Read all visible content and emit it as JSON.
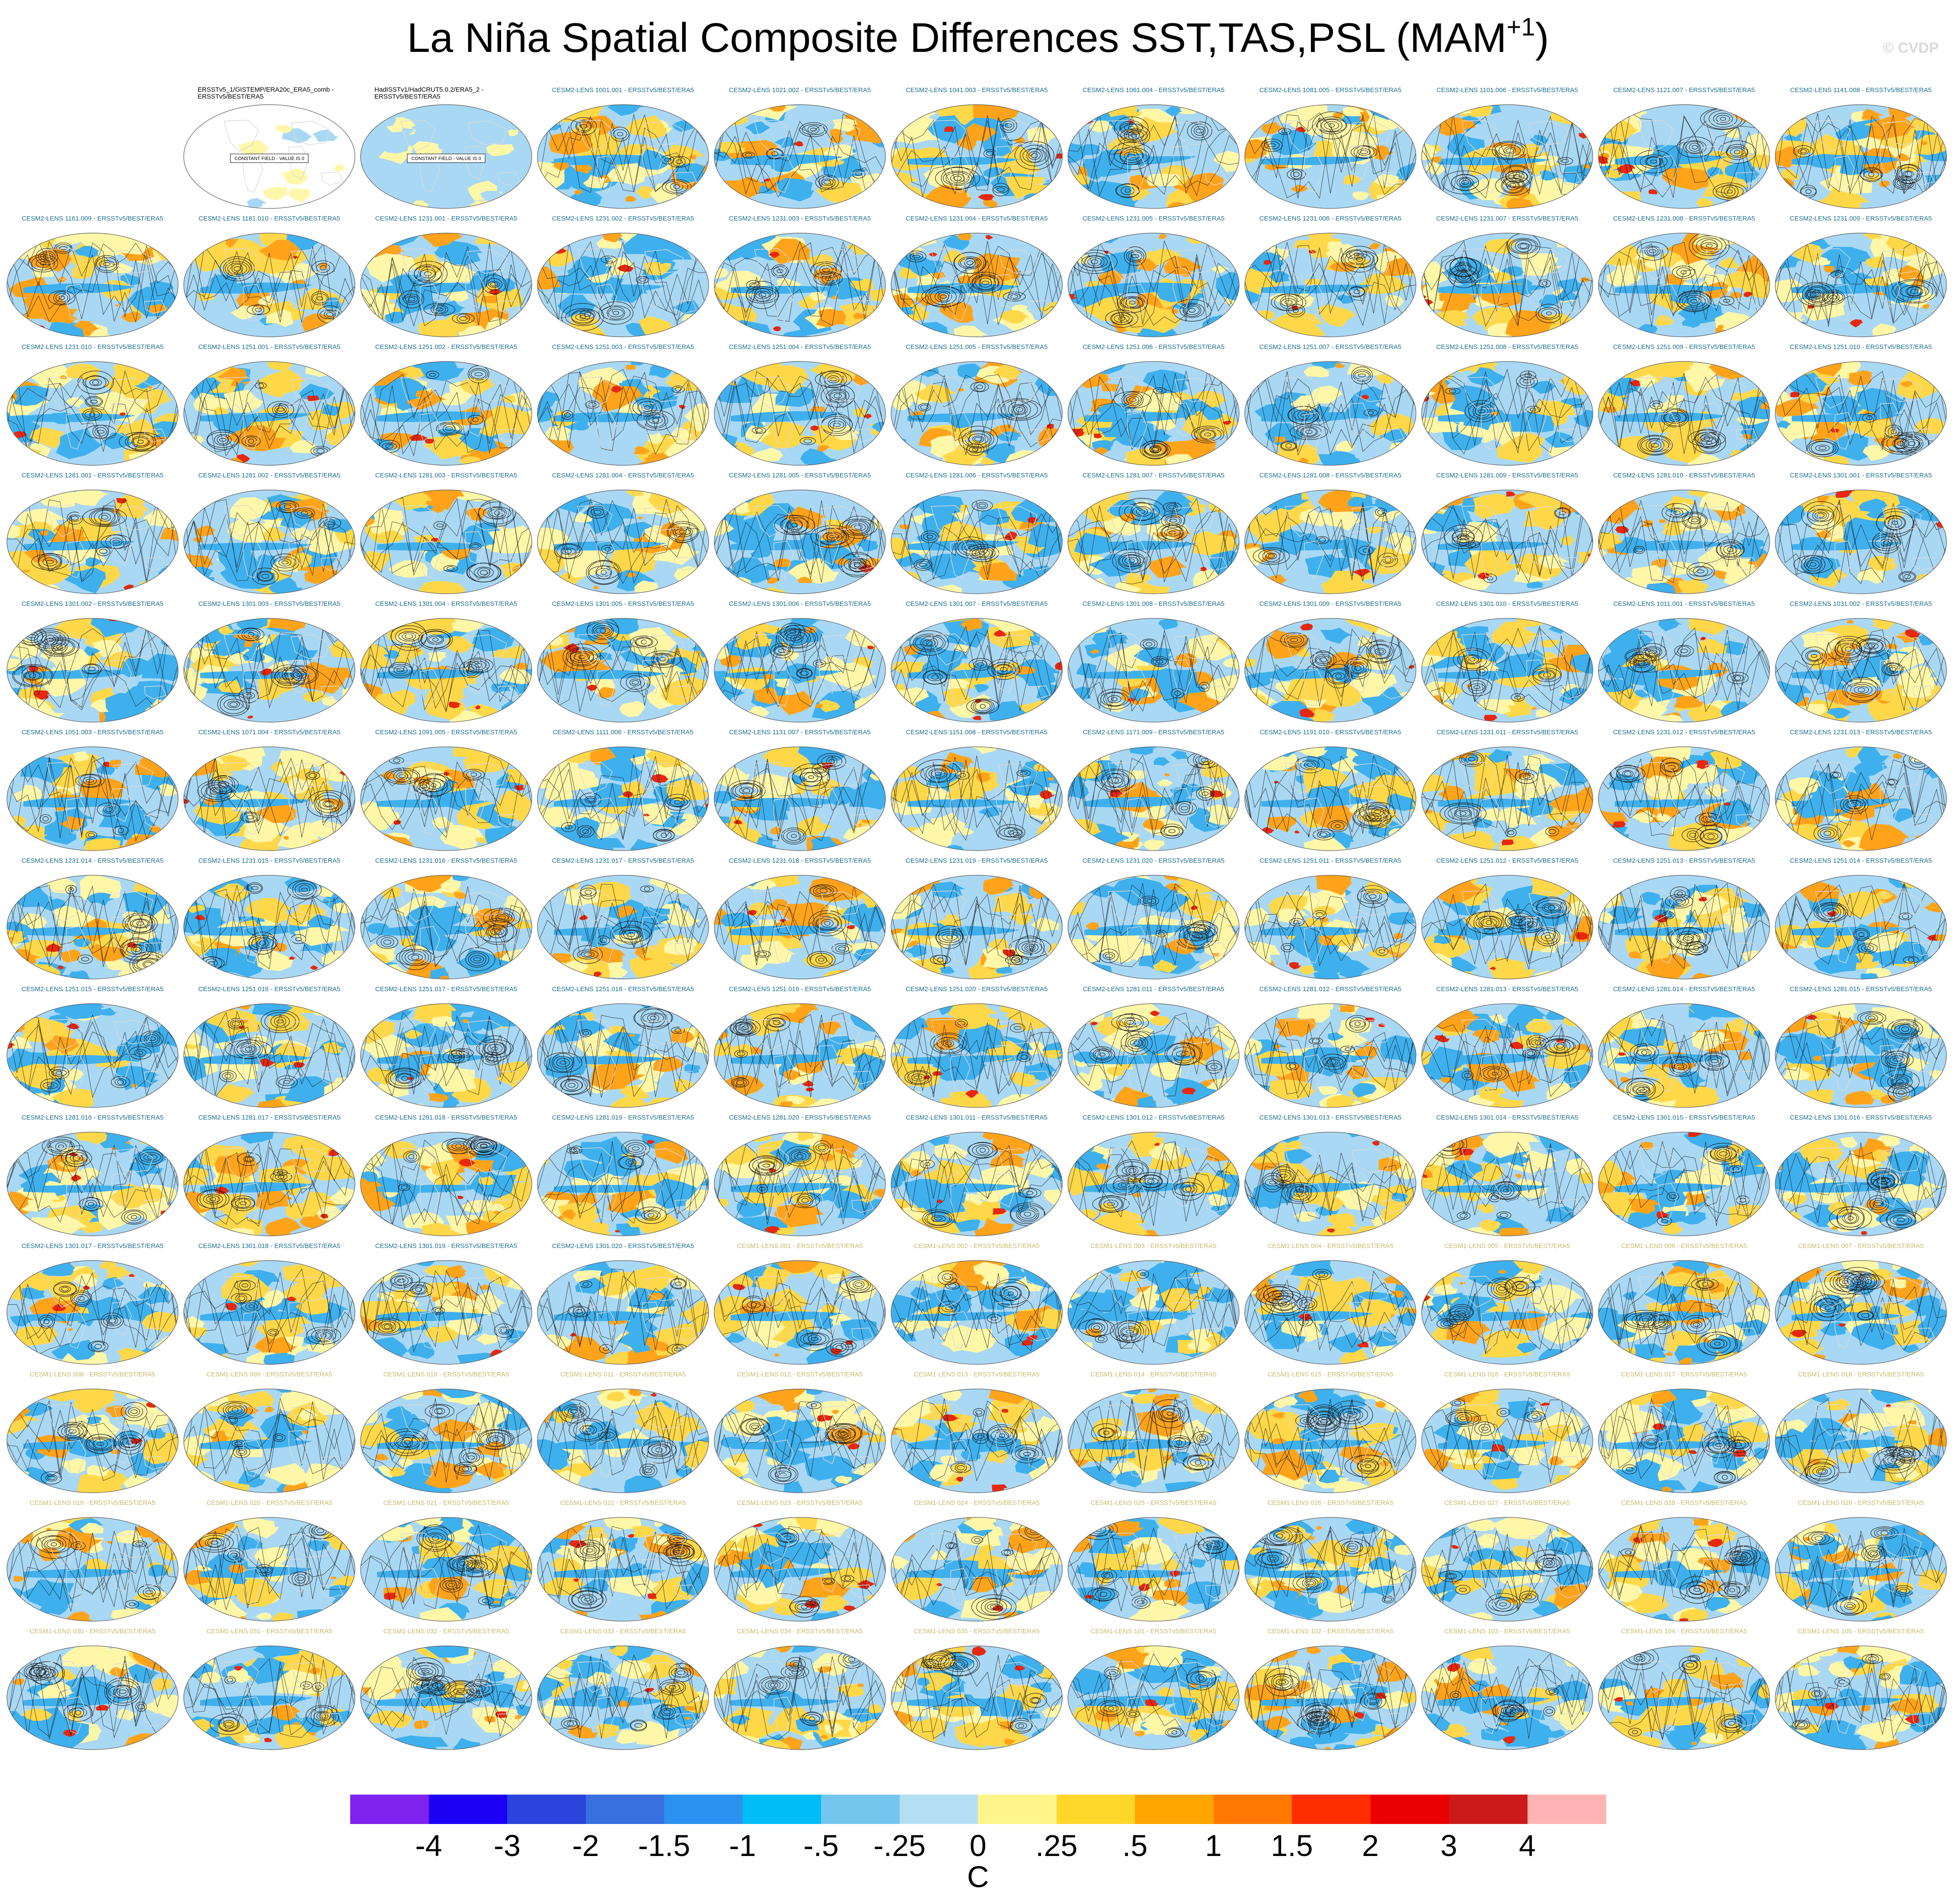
{
  "figure": {
    "title": "La Niña Spatial Composite Differences SST,TAS,PSL (MAM",
    "title_superscript": "+1",
    "title_close": ")",
    "watermark": "© CVDP"
  },
  "panels": [
    {
      "label": "ERSSTv5_1/GISTEMP/ERA20c_ERA5_comb - ERSSTv5/BEST/ERA5",
      "kind": "obs",
      "note": "CONSTANT FIELD - VALUE IS 0"
    },
    {
      "label": "HadISSTv1/HadCRUT5.0.2/ERA5_2 - ERSSTv5/BEST/ERA5",
      "kind": "obs",
      "note": "CONSTANT FIELD - VALUE IS 0"
    },
    {
      "label": "CESM2-LENS 1001.001 - ERSSTv5/BEST/ERA5",
      "kind": "c2"
    },
    {
      "label": "CESM2-LENS 1021.002 - ERSSTv5/BEST/ERA5",
      "kind": "c2"
    },
    {
      "label": "CESM2-LENS 1041.003 - ERSSTv5/BEST/ERA5",
      "kind": "c2"
    },
    {
      "label": "CESM2-LENS 1061.004 - ERSSTv5/BEST/ERA5",
      "kind": "c2"
    },
    {
      "label": "CESM2-LENS 1081.005 - ERSSTv5/BEST/ERA5",
      "kind": "c2"
    },
    {
      "label": "CESM2-LENS 1101.006 - ERSSTv5/BEST/ERA5",
      "kind": "c2"
    },
    {
      "label": "CESM2-LENS 1121.007 - ERSSTv5/BEST/ERA5",
      "kind": "c2"
    },
    {
      "label": "CESM2-LENS 1141.008 - ERSSTv5/BEST/ERA5",
      "kind": "c2"
    },
    {
      "label": "CESM2-LENS 1161.009 - ERSSTv5/BEST/ERA5",
      "kind": "c2"
    },
    {
      "label": "CESM2-LENS 1181.010 - ERSSTv5/BEST/ERA5",
      "kind": "c2"
    },
    {
      "label": "CESM2-LENS 1231.001 - ERSSTv5/BEST/ERA5",
      "kind": "c2"
    },
    {
      "label": "CESM2-LENS 1231.002 - ERSSTv5/BEST/ERA5",
      "kind": "c2"
    },
    {
      "label": "CESM2-LENS 1231.003 - ERSSTv5/BEST/ERA5",
      "kind": "c2"
    },
    {
      "label": "CESM2-LENS 1231.004 - ERSSTv5/BEST/ERA5",
      "kind": "c2"
    },
    {
      "label": "CESM2-LENS 1231.005 - ERSSTv5/BEST/ERA5",
      "kind": "c2"
    },
    {
      "label": "CESM2-LENS 1231.006 - ERSSTv5/BEST/ERA5",
      "kind": "c2"
    },
    {
      "label": "CESM2-LENS 1231.007 - ERSSTv5/BEST/ERA5",
      "kind": "c2"
    },
    {
      "label": "CESM2-LENS 1231.008 - ERSSTv5/BEST/ERA5",
      "kind": "c2"
    },
    {
      "label": "CESM2-LENS 1231.009 - ERSSTv5/BEST/ERA5",
      "kind": "c2"
    },
    {
      "label": "CESM2-LENS 1231.010 - ERSSTv5/BEST/ERA5",
      "kind": "c2"
    },
    {
      "label": "CESM2-LENS 1251.001 - ERSSTv5/BEST/ERA5",
      "kind": "c2"
    },
    {
      "label": "CESM2-LENS 1251.002 - ERSSTv5/BEST/ERA5",
      "kind": "c2"
    },
    {
      "label": "CESM2-LENS 1251.003 - ERSSTv5/BEST/ERA5",
      "kind": "c2"
    },
    {
      "label": "CESM2-LENS 1251.004 - ERSSTv5/BEST/ERA5",
      "kind": "c2"
    },
    {
      "label": "CESM2-LENS 1251.005 - ERSSTv5/BEST/ERA5",
      "kind": "c2"
    },
    {
      "label": "CESM2-LENS 1251.006 - ERSSTv5/BEST/ERA5",
      "kind": "c2"
    },
    {
      "label": "CESM2-LENS 1251.007 - ERSSTv5/BEST/ERA5",
      "kind": "c2"
    },
    {
      "label": "CESM2-LENS 1251.008 - ERSSTv5/BEST/ERA5",
      "kind": "c2"
    },
    {
      "label": "CESM2-LENS 1251.009 - ERSSTv5/BEST/ERA5",
      "kind": "c2"
    },
    {
      "label": "CESM2-LENS 1251.010 - ERSSTv5/BEST/ERA5",
      "kind": "c2"
    },
    {
      "label": "CESM2-LENS 1281.001 - ERSSTv5/BEST/ERA5",
      "kind": "c2"
    },
    {
      "label": "CESM2-LENS 1281.002 - ERSSTv5/BEST/ERA5",
      "kind": "c2"
    },
    {
      "label": "CESM2-LENS 1281.003 - ERSSTv5/BEST/ERA5",
      "kind": "c2"
    },
    {
      "label": "CESM2-LENS 1281.004 - ERSSTv5/BEST/ERA5",
      "kind": "c2"
    },
    {
      "label": "CESM2-LENS 1281.005 - ERSSTv5/BEST/ERA5",
      "kind": "c2"
    },
    {
      "label": "CESM2-LENS 1281.006 - ERSSTv5/BEST/ERA5",
      "kind": "c2"
    },
    {
      "label": "CESM2-LENS 1281.007 - ERSSTv5/BEST/ERA5",
      "kind": "c2"
    },
    {
      "label": "CESM2-LENS 1281.008 - ERSSTv5/BEST/ERA5",
      "kind": "c2"
    },
    {
      "label": "CESM2-LENS 1281.009 - ERSSTv5/BEST/ERA5",
      "kind": "c2"
    },
    {
      "label": "CESM2-LENS 1281.010 - ERSSTv5/BEST/ERA5",
      "kind": "c2"
    },
    {
      "label": "CESM2-LENS 1301.001 - ERSSTv5/BEST/ERA5",
      "kind": "c2"
    },
    {
      "label": "CESM2-LENS 1301.002 - ERSSTv5/BEST/ERA5",
      "kind": "c2"
    },
    {
      "label": "CESM2-LENS 1301.003 - ERSSTv5/BEST/ERA5",
      "kind": "c2"
    },
    {
      "label": "CESM2-LENS 1301.004 - ERSSTv5/BEST/ERA5",
      "kind": "c2"
    },
    {
      "label": "CESM2-LENS 1301.005 - ERSSTv5/BEST/ERA5",
      "kind": "c2"
    },
    {
      "label": "CESM2-LENS 1301.006 - ERSSTv5/BEST/ERA5",
      "kind": "c2"
    },
    {
      "label": "CESM2-LENS 1301.007 - ERSSTv5/BEST/ERA5",
      "kind": "c2"
    },
    {
      "label": "CESM2-LENS 1301.008 - ERSSTv5/BEST/ERA5",
      "kind": "c2"
    },
    {
      "label": "CESM2-LENS 1301.009 - ERSSTv5/BEST/ERA5",
      "kind": "c2"
    },
    {
      "label": "CESM2-LENS 1301.010 - ERSSTv5/BEST/ERA5",
      "kind": "c2"
    },
    {
      "label": "CESM2-LENS 1011.001 - ERSSTv5/BEST/ERA5",
      "kind": "c2"
    },
    {
      "label": "CESM2-LENS 1031.002 - ERSSTv5/BEST/ERA5",
      "kind": "c2"
    },
    {
      "label": "CESM2-LENS 1051.003 - ERSSTv5/BEST/ERA5",
      "kind": "c2"
    },
    {
      "label": "CESM2-LENS 1071.004 - ERSSTv5/BEST/ERA5",
      "kind": "c2"
    },
    {
      "label": "CESM2-LENS 1091.005 - ERSSTv5/BEST/ERA5",
      "kind": "c2"
    },
    {
      "label": "CESM2-LENS 1111.006 - ERSSTv5/BEST/ERA5",
      "kind": "c2"
    },
    {
      "label": "CESM2-LENS 1131.007 - ERSSTv5/BEST/ERA5",
      "kind": "c2"
    },
    {
      "label": "CESM2-LENS 1151.008 - ERSSTv5/BEST/ERA5",
      "kind": "c2"
    },
    {
      "label": "CESM2-LENS 1171.009 - ERSSTv5/BEST/ERA5",
      "kind": "c2"
    },
    {
      "label": "CESM2-LENS 1191.010 - ERSSTv5/BEST/ERA5",
      "kind": "c2"
    },
    {
      "label": "CESM2-LENS 1231.011 - ERSSTv5/BEST/ERA5",
      "kind": "c2"
    },
    {
      "label": "CESM2-LENS 1231.012 - ERSSTv5/BEST/ERA5",
      "kind": "c2"
    },
    {
      "label": "CESM2-LENS 1231.013 - ERSSTv5/BEST/ERA5",
      "kind": "c2"
    },
    {
      "label": "CESM2-LENS 1231.014 - ERSSTv5/BEST/ERA5",
      "kind": "c2"
    },
    {
      "label": "CESM2-LENS 1231.015 - ERSSTv5/BEST/ERA5",
      "kind": "c2"
    },
    {
      "label": "CESM2-LENS 1231.016 - ERSSTv5/BEST/ERA5",
      "kind": "c2"
    },
    {
      "label": "CESM2-LENS 1231.017 - ERSSTv5/BEST/ERA5",
      "kind": "c2"
    },
    {
      "label": "CESM2-LENS 1231.018 - ERSSTv5/BEST/ERA5",
      "kind": "c2"
    },
    {
      "label": "CESM2-LENS 1231.019 - ERSSTv5/BEST/ERA5",
      "kind": "c2"
    },
    {
      "label": "CESM2-LENS 1231.020 - ERSSTv5/BEST/ERA5",
      "kind": "c2"
    },
    {
      "label": "CESM2-LENS 1251.011 - ERSSTv5/BEST/ERA5",
      "kind": "c2"
    },
    {
      "label": "CESM2-LENS 1251.012 - ERSSTv5/BEST/ERA5",
      "kind": "c2"
    },
    {
      "label": "CESM2-LENS 1251.013 - ERSSTv5/BEST/ERA5",
      "kind": "c2"
    },
    {
      "label": "CESM2-LENS 1251.014 - ERSSTv5/BEST/ERA5",
      "kind": "c2"
    },
    {
      "label": "CESM2-LENS 1251.015 - ERSSTv5/BEST/ERA5",
      "kind": "c2"
    },
    {
      "label": "CESM2-LENS 1251.016 - ERSSTv5/BEST/ERA5",
      "kind": "c2"
    },
    {
      "label": "CESM2-LENS 1251.017 - ERSSTv5/BEST/ERA5",
      "kind": "c2"
    },
    {
      "label": "CESM2-LENS 1251.018 - ERSSTv5/BEST/ERA5",
      "kind": "c2"
    },
    {
      "label": "CESM2-LENS 1251.019 - ERSSTv5/BEST/ERA5",
      "kind": "c2"
    },
    {
      "label": "CESM2-LENS 1251.020 - ERSSTv5/BEST/ERA5",
      "kind": "c2"
    },
    {
      "label": "CESM2-LENS 1281.011 - ERSSTv5/BEST/ERA5",
      "kind": "c2"
    },
    {
      "label": "CESM2-LENS 1281.012 - ERSSTv5/BEST/ERA5",
      "kind": "c2"
    },
    {
      "label": "CESM2-LENS 1281.013 - ERSSTv5/BEST/ERA5",
      "kind": "c2"
    },
    {
      "label": "CESM2-LENS 1281.014 - ERSSTv5/BEST/ERA5",
      "kind": "c2"
    },
    {
      "label": "CESM2-LENS 1281.015 - ERSSTv5/BEST/ERA5",
      "kind": "c2"
    },
    {
      "label": "CESM2-LENS 1281.016 - ERSSTv5/BEST/ERA5",
      "kind": "c2"
    },
    {
      "label": "CESM2-LENS 1281.017 - ERSSTv5/BEST/ERA5",
      "kind": "c2"
    },
    {
      "label": "CESM2-LENS 1281.018 - ERSSTv5/BEST/ERA5",
      "kind": "c2"
    },
    {
      "label": "CESM2-LENS 1281.019 - ERSSTv5/BEST/ERA5",
      "kind": "c2"
    },
    {
      "label": "CESM2-LENS 1281.020 - ERSSTv5/BEST/ERA5",
      "kind": "c2"
    },
    {
      "label": "CESM2-LENS 1301.011 - ERSSTv5/BEST/ERA5",
      "kind": "c2"
    },
    {
      "label": "CESM2-LENS 1301.012 - ERSSTv5/BEST/ERA5",
      "kind": "c2"
    },
    {
      "label": "CESM2-LENS 1301.013 - ERSSTv5/BEST/ERA5",
      "kind": "c2"
    },
    {
      "label": "CESM2-LENS 1301.014 - ERSSTv5/BEST/ERA5",
      "kind": "c2"
    },
    {
      "label": "CESM2-LENS 1301.015 - ERSSTv5/BEST/ERA5",
      "kind": "c2"
    },
    {
      "label": "CESM2-LENS 1301.016 - ERSSTv5/BEST/ERA5",
      "kind": "c2"
    },
    {
      "label": "CESM2-LENS 1301.017 - ERSSTv5/BEST/ERA5",
      "kind": "c2"
    },
    {
      "label": "CESM2-LENS 1301.018 - ERSSTv5/BEST/ERA5",
      "kind": "c2"
    },
    {
      "label": "CESM2-LENS 1301.019 - ERSSTv5/BEST/ERA5",
      "kind": "c2"
    },
    {
      "label": "CESM2-LENS 1301.020 - ERSSTv5/BEST/ERA5",
      "kind": "c2"
    },
    {
      "label": "CESM1-LENS 001 - ERSSTv5/BEST/ERA5",
      "kind": "c1"
    },
    {
      "label": "CESM1-LENS 002 - ERSSTv5/BEST/ERA5",
      "kind": "c1"
    },
    {
      "label": "CESM1-LENS 003 - ERSSTv5/BEST/ERA5",
      "kind": "c1"
    },
    {
      "label": "CESM1-LENS 004 - ERSSTv5/BEST/ERA5",
      "kind": "c1"
    },
    {
      "label": "CESM1-LENS 005 - ERSSTv5/BEST/ERA5",
      "kind": "c1"
    },
    {
      "label": "CESM1-LENS 006 - ERSSTv5/BEST/ERA5",
      "kind": "c1"
    },
    {
      "label": "CESM1-LENS 007 - ERSSTv5/BEST/ERA5",
      "kind": "c1"
    },
    {
      "label": "CESM1-LENS 008 - ERSSTv5/BEST/ERA5",
      "kind": "c1"
    },
    {
      "label": "CESM1-LENS 009 - ERSSTv5/BEST/ERA5",
      "kind": "c1"
    },
    {
      "label": "CESM1-LENS 010 - ERSSTv5/BEST/ERA5",
      "kind": "c1"
    },
    {
      "label": "CESM1-LENS 011 - ERSSTv5/BEST/ERA5",
      "kind": "c1"
    },
    {
      "label": "CESM1-LENS 012 - ERSSTv5/BEST/ERA5",
      "kind": "c1"
    },
    {
      "label": "CESM1-LENS 013 - ERSSTv5/BEST/ERA5",
      "kind": "c1"
    },
    {
      "label": "CESM1-LENS 014 - ERSSTv5/BEST/ERA5",
      "kind": "c1"
    },
    {
      "label": "CESM1-LENS 015 - ERSSTv5/BEST/ERA5",
      "kind": "c1"
    },
    {
      "label": "CESM1-LENS 016 - ERSSTv5/BEST/ERA5",
      "kind": "c1"
    },
    {
      "label": "CESM1-LENS 017 - ERSSTv5/BEST/ERA5",
      "kind": "c1"
    },
    {
      "label": "CESM1-LENS 018 - ERSSTv5/BEST/ERA5",
      "kind": "c1"
    },
    {
      "label": "CESM1-LENS 019 - ERSSTv5/BEST/ERA5",
      "kind": "c1"
    },
    {
      "label": "CESM1-LENS 020 - ERSSTv5/BEST/ERA5",
      "kind": "c1"
    },
    {
      "label": "CESM1-LENS 021 - ERSSTv5/BEST/ERA5",
      "kind": "c1"
    },
    {
      "label": "CESM1-LENS 022 - ERSSTv5/BEST/ERA5",
      "kind": "c1"
    },
    {
      "label": "CESM1-LENS 023 - ERSSTv5/BEST/ERA5",
      "kind": "c1"
    },
    {
      "label": "CESM1-LENS 024 - ERSSTv5/BEST/ERA5",
      "kind": "c1"
    },
    {
      "label": "CESM1-LENS 025 - ERSSTv5/BEST/ERA5",
      "kind": "c1"
    },
    {
      "label": "CESM1-LENS 026 - ERSSTv5/BEST/ERA5",
      "kind": "c1"
    },
    {
      "label": "CESM1-LENS 027 - ERSSTv5/BEST/ERA5",
      "kind": "c1"
    },
    {
      "label": "CESM1-LENS 028 - ERSSTv5/BEST/ERA5",
      "kind": "c1"
    },
    {
      "label": "CESM1-LENS 029 - ERSSTv5/BEST/ERA5",
      "kind": "c1"
    },
    {
      "label": "CESM1-LENS 030 - ERSSTv5/BEST/ERA5",
      "kind": "c1"
    },
    {
      "label": "CESM1-LENS 031 - ERSSTv5/BEST/ERA5",
      "kind": "c1"
    },
    {
      "label": "CESM1-LENS 032 - ERSSTv5/BEST/ERA5",
      "kind": "c1"
    },
    {
      "label": "CESM1-LENS 033 - ERSSTv5/BEST/ERA5",
      "kind": "c1"
    },
    {
      "label": "CESM1-LENS 034 - ERSSTv5/BEST/ERA5",
      "kind": "c1"
    },
    {
      "label": "CESM1-LENS 035 - ERSSTv5/BEST/ERA5",
      "kind": "c1"
    },
    {
      "label": "CESM1-LENS 101 - ERSSTv5/BEST/ERA5",
      "kind": "c1"
    },
    {
      "label": "CESM1-LENS 102 - ERSSTv5/BEST/ERA5",
      "kind": "c1"
    },
    {
      "label": "CESM1-LENS 103 - ERSSTv5/BEST/ERA5",
      "kind": "c1"
    },
    {
      "label": "CESM1-LENS 104 - ERSSTv5/BEST/ERA5",
      "kind": "c1"
    },
    {
      "label": "CESM1-LENS 105 - ERSSTv5/BEST/ERA5",
      "kind": "c1"
    }
  ],
  "colorbar": {
    "unit": "C",
    "colors": [
      "#7f22ee",
      "#1c00f5",
      "#2a44dc",
      "#3a6fe0",
      "#2b92ef",
      "#00bdf7",
      "#74c6ee",
      "#b4def2",
      "#fff58a",
      "#ffd629",
      "#ffa500",
      "#ff7800",
      "#ff2d00",
      "#ea0000",
      "#cc1a1a",
      "#ffb3b3"
    ],
    "ticks": [
      "-4",
      "-3",
      "-2",
      "-1.5",
      "-1",
      "-.5",
      "-.25",
      "0",
      ".25",
      ".5",
      "1",
      "1.5",
      "2",
      "3",
      "4"
    ]
  },
  "palette": {
    "ocean_blue": "#3fb0ee",
    "light_blue": "#a9d8f4",
    "pale_yellow": "#fff7a8",
    "yellow": "#ffd84a",
    "orange": "#ffa31a",
    "red": "#e8280d",
    "contour": "#1a1a1a",
    "coast": "#d9d9d9",
    "label_cesm2": "#1a6e8f",
    "label_cesm1": "#c8b86a"
  }
}
